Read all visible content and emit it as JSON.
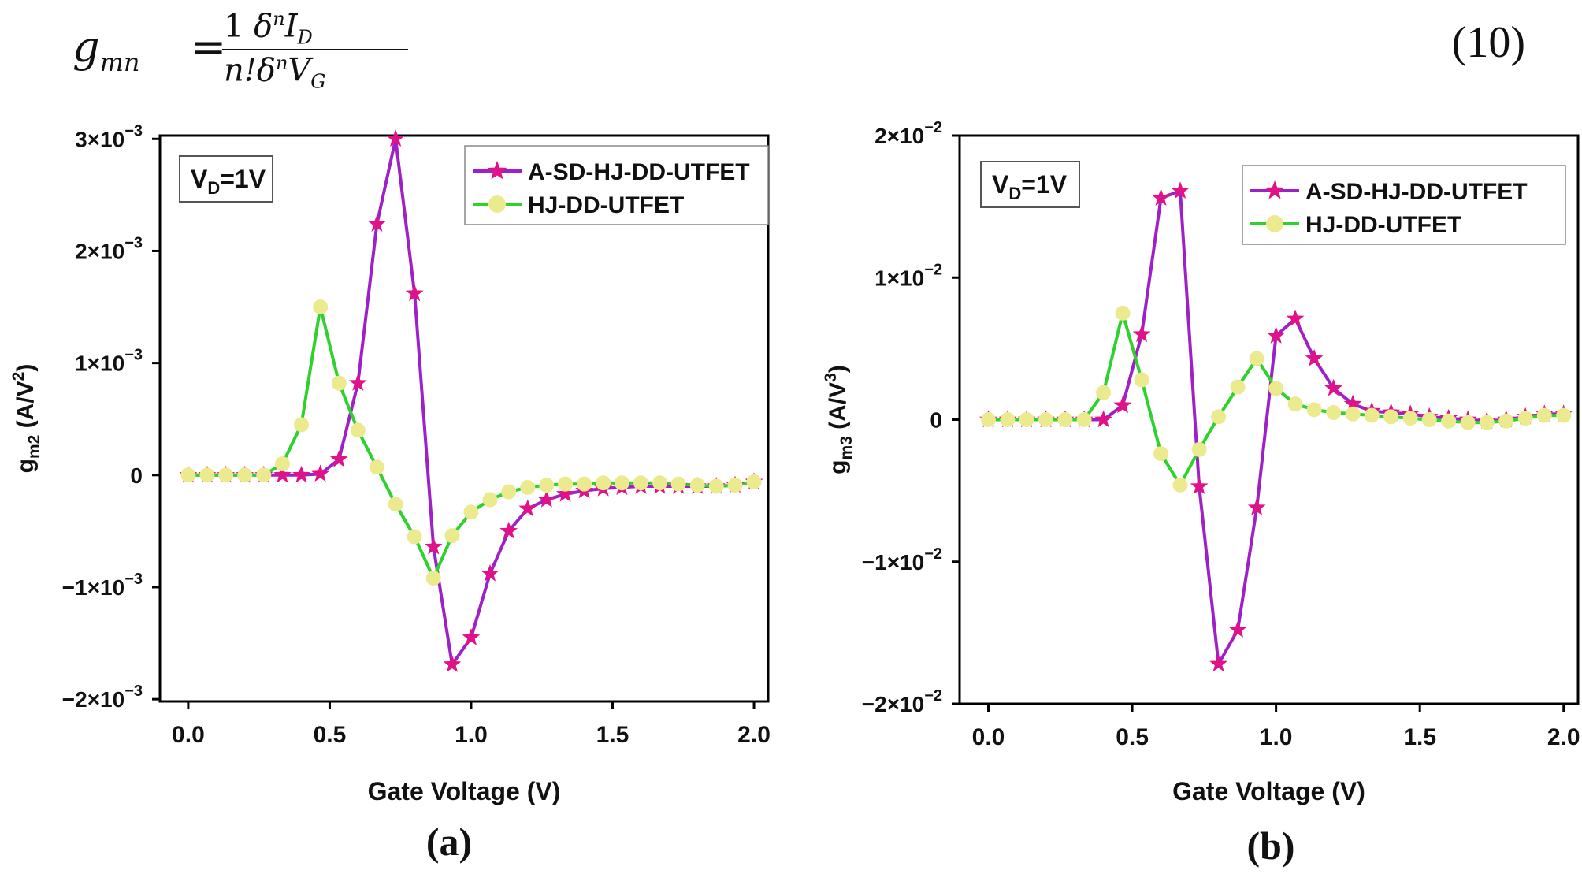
{
  "equation": {
    "lhs": "g",
    "lhs_sub": "mn",
    "eq": "=",
    "frac_num_1": "1",
    "frac_num_delta": "δ",
    "frac_num_n": "n",
    "frac_num_I": "I",
    "frac_num_I_sub": "D",
    "frac_den_n": "n!",
    "frac_den_delta": "δ",
    "frac_den_n_sup": "n",
    "frac_den_V": "V",
    "frac_den_V_sub": "G",
    "number": "(10)"
  },
  "colors": {
    "series1_line": "#a020c8",
    "series1_marker": "#e0128a",
    "series2_line": "#2ed12e",
    "series2_marker": "#ecea8e"
  },
  "chart_data": [
    {
      "type": "line",
      "panel_label": "(a)",
      "annotation": {
        "main": "V",
        "sub": "D",
        "tail": "=1V"
      },
      "xlabel": "Gate Voltage (V)",
      "ylabel": {
        "main": "g",
        "sub": "m2",
        "tail": " (A/V",
        "sup": "2",
        "close": ")"
      },
      "xlim": [
        -0.1,
        2.05
      ],
      "ylim": [
        -0.00202,
        0.00303
      ],
      "xticks": [
        0.0,
        0.5,
        1.0,
        1.5,
        2.0
      ],
      "xtick_labels": [
        "0.0",
        "0.5",
        "1.0",
        "1.5",
        "2.0"
      ],
      "yticks": [
        -0.002,
        -0.001,
        0,
        0.001,
        0.002,
        0.003
      ],
      "ytick_labels": [
        {
          "mant": "−2×10",
          "exp": "−3"
        },
        {
          "mant": "−1×10",
          "exp": "−3"
        },
        {
          "mant": "0",
          "exp": ""
        },
        {
          "mant": "1×10",
          "exp": "−3"
        },
        {
          "mant": "2×10",
          "exp": "−3"
        },
        {
          "mant": "3×10",
          "exp": "−3"
        }
      ],
      "legend_position": "top-right",
      "x": [
        0.0,
        0.067,
        0.133,
        0.2,
        0.267,
        0.333,
        0.4,
        0.467,
        0.533,
        0.6,
        0.667,
        0.733,
        0.8,
        0.867,
        0.933,
        1.0,
        1.067,
        1.133,
        1.2,
        1.267,
        1.333,
        1.4,
        1.467,
        1.533,
        1.6,
        1.667,
        1.733,
        1.8,
        1.867,
        1.933,
        2.0
      ],
      "series": [
        {
          "name": "A-SD-HJ-DD-UTFET",
          "marker": "star",
          "values": [
            0,
            0,
            0,
            0,
            0,
            0,
            0,
            1e-05,
            0.00014,
            0.00082,
            0.00224,
            0.003,
            0.00162,
            -0.00064,
            -0.00169,
            -0.00145,
            -0.00088,
            -0.0005,
            -0.0003,
            -0.00022,
            -0.00017,
            -0.00014,
            -0.00012,
            -0.00011,
            -0.0001,
            -0.0001,
            -0.0001,
            -0.0001,
            -0.0001,
            -9e-05,
            -6e-05
          ]
        },
        {
          "name": "HJ-DD-UTFET",
          "marker": "circle",
          "values": [
            0,
            0,
            0,
            0,
            0,
            0.0001,
            0.00045,
            0.0015,
            0.00082,
            0.0004,
            7e-05,
            -0.00026,
            -0.00055,
            -0.00092,
            -0.00054,
            -0.00033,
            -0.00022,
            -0.00015,
            -0.00011,
            -9e-05,
            -8e-05,
            -8e-05,
            -7e-05,
            -7e-05,
            -7e-05,
            -7e-05,
            -8e-05,
            -9e-05,
            -0.0001,
            -9e-05,
            -6e-05
          ]
        }
      ]
    },
    {
      "type": "line",
      "panel_label": "(b)",
      "annotation": {
        "main": "V",
        "sub": "D",
        "tail": "=1V"
      },
      "xlabel": "Gate Voltage (V)",
      "ylabel": {
        "main": "g",
        "sub": "m3",
        "tail": " (A/V",
        "sup": "3",
        "close": ")"
      },
      "xlim": [
        -0.1,
        2.05
      ],
      "ylim": [
        -0.02,
        0.02
      ],
      "xticks": [
        0.0,
        0.5,
        1.0,
        1.5,
        2.0
      ],
      "xtick_labels": [
        "0.0",
        "0.5",
        "1.0",
        "1.5",
        "2.0"
      ],
      "yticks": [
        -0.02,
        -0.01,
        0,
        0.01,
        0.02
      ],
      "ytick_labels": [
        {
          "mant": "−2×10",
          "exp": "−2"
        },
        {
          "mant": "−1×10",
          "exp": "−2"
        },
        {
          "mant": "0",
          "exp": ""
        },
        {
          "mant": "1×10",
          "exp": "−2"
        },
        {
          "mant": "2×10",
          "exp": "−2"
        }
      ],
      "legend_position": "top-right",
      "x": [
        0.0,
        0.067,
        0.133,
        0.2,
        0.267,
        0.333,
        0.4,
        0.467,
        0.533,
        0.6,
        0.667,
        0.733,
        0.8,
        0.867,
        0.933,
        1.0,
        1.067,
        1.133,
        1.2,
        1.267,
        1.333,
        1.4,
        1.467,
        1.533,
        1.6,
        1.667,
        1.733,
        1.8,
        1.867,
        1.933,
        2.0
      ],
      "series": [
        {
          "name": "A-SD-HJ-DD-UTFET",
          "marker": "star",
          "values": [
            0,
            0,
            0,
            0,
            0,
            0,
            0,
            0.001,
            0.006,
            0.0156,
            0.0161,
            -0.0047,
            -0.0172,
            -0.0148,
            -0.0062,
            0.0059,
            0.0071,
            0.0043,
            0.0022,
            0.0011,
            0.0006,
            0.0005,
            0.0004,
            0.0002,
            0.0001,
            0,
            -0.0001,
            0,
            0.0002,
            0.0004,
            0.0004
          ]
        },
        {
          "name": "HJ-DD-UTFET",
          "marker": "circle",
          "values": [
            0,
            0,
            0,
            0,
            0,
            0,
            0.0019,
            0.0075,
            0.0028,
            -0.0024,
            -0.0046,
            -0.0021,
            0.0002,
            0.0023,
            0.0043,
            0.0022,
            0.0011,
            0.0007,
            0.0005,
            0.0004,
            0.0003,
            0.0002,
            0.0001,
            0,
            -0.0001,
            -0.0002,
            -0.0002,
            -0.0001,
            0.0001,
            0.0003,
            0.0003
          ]
        }
      ]
    }
  ]
}
